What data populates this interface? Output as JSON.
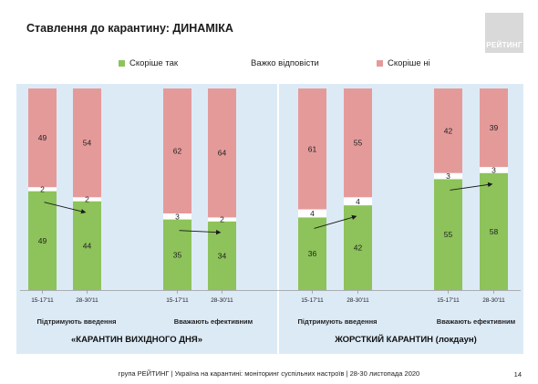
{
  "slide": {
    "title": "Ставлення до карантину: ДИНАМІКА",
    "logo_text": "РЕЙТИНГ",
    "footer": "група РЕЙТИНГ | Україна на карантині: моніторинг суспільних настроїв | 28-30 листопада 2020",
    "page_number": "14"
  },
  "legend": [
    {
      "label": "Скоріше так",
      "color": "#8dc35a"
    },
    {
      "label": "Важко відповісти",
      "color": "#ffffff"
    },
    {
      "label": "Скоріше ні",
      "color": "#e59a9a"
    }
  ],
  "groups": [
    {
      "title": "«КАРАНТИН ВИХІДНОГО ДНЯ»"
    },
    {
      "title": "ЖОРСТКИЙ КАРАНТИН (локдаун)"
    }
  ],
  "subcharts": [
    {
      "subtitle": "Підтримують введення"
    },
    {
      "subtitle": "Вважають ефективним"
    },
    {
      "subtitle": "Підтримують введення"
    },
    {
      "subtitle": "Вважають ефективним"
    }
  ],
  "chart_data": {
    "type": "bar",
    "stacked": true,
    "percent_scale": [
      0,
      100
    ],
    "series_order": [
      "Скоріше так",
      "Важко відповісти",
      "Скоріше ні"
    ],
    "colors": {
      "yes": "#8dc35a",
      "hard": "#ffffff",
      "no": "#e59a9a"
    },
    "bars": [
      {
        "x": "15-17'11",
        "yes": 49,
        "hard": 2,
        "no": 49
      },
      {
        "x": "28-30'11",
        "yes": 44,
        "hard": 2,
        "no": 54
      },
      {
        "x": "15-17'11",
        "yes": 35,
        "hard": 3,
        "no": 62
      },
      {
        "x": "28-30'11",
        "yes": 34,
        "hard": 2,
        "no": 64
      },
      {
        "x": "15-17'11",
        "yes": 36,
        "hard": 4,
        "no": 61
      },
      {
        "x": "28-30'11",
        "yes": 42,
        "hard": 4,
        "no": 55
      },
      {
        "x": "15-17'11",
        "yes": 55,
        "hard": 3,
        "no": 42
      },
      {
        "x": "28-30'11",
        "yes": 58,
        "hard": 3,
        "no": 39
      }
    ]
  }
}
